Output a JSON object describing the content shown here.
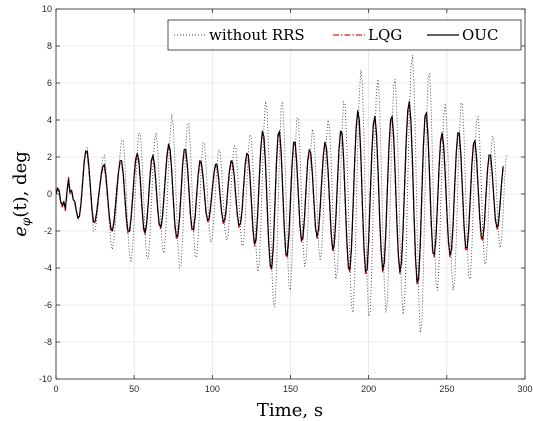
{
  "chart_data": {
    "type": "line",
    "xlabel": "Time, s",
    "ylabel": "e_φ(t), deg",
    "ylabel_parts": {
      "var": "e",
      "sub": "φ",
      "rest": "(t), deg"
    },
    "xlim": [
      0,
      300
    ],
    "ylim": [
      -10,
      10
    ],
    "x_ticks": [
      "0",
      "50",
      "100",
      "150",
      "200",
      "250",
      "300"
    ],
    "y_ticks": [
      "-10",
      "-8",
      "-6",
      "-4",
      "-2",
      "0",
      "2",
      "4",
      "6",
      "8",
      "10"
    ],
    "grid": true,
    "legend_position": "top-right",
    "sample_step": 1,
    "series": [
      {
        "name": "without RRS",
        "color": "#404040",
        "style": "dotted",
        "x_start": 0,
        "values": [
          0.0,
          0.4,
          0.2,
          -0.5,
          -0.6,
          -0.4,
          -0.8,
          0.1,
          0.6,
          0.0,
          0.2,
          -0.3,
          -0.5,
          -1.0,
          -1.4,
          -1.3,
          -0.6,
          0.6,
          1.8,
          2.4,
          2.5,
          1.7,
          0.4,
          -1.0,
          -2.0,
          -2.0,
          -1.4,
          -0.6,
          0.4,
          1.3,
          2.0,
          2.1,
          1.3,
          0.0,
          -1.4,
          -2.6,
          -3.0,
          -2.5,
          -1.5,
          -0.2,
          1.0,
          2.2,
          2.9,
          2.9,
          1.8,
          0.0,
          -2.0,
          -3.3,
          -3.7,
          -2.9,
          -1.4,
          0.6,
          2.4,
          3.3,
          3.2,
          2.0,
          0.0,
          -2.1,
          -3.4,
          -3.5,
          -2.4,
          -0.6,
          1.4,
          2.9,
          3.3,
          2.5,
          0.8,
          -1.3,
          -2.9,
          -3.2,
          -2.3,
          -0.6,
          1.5,
          3.3,
          4.3,
          3.7,
          1.9,
          -0.5,
          -2.8,
          -4.0,
          -3.9,
          -2.4,
          0.0,
          2.4,
          3.8,
          3.8,
          2.5,
          0.3,
          -2.0,
          -3.4,
          -3.4,
          -2.2,
          -0.3,
          1.6,
          2.8,
          2.7,
          1.5,
          -0.2,
          -1.8,
          -2.6,
          -2.4,
          -1.3,
          0.2,
          1.6,
          2.4,
          2.3,
          1.2,
          -0.4,
          -1.8,
          -2.5,
          -2.3,
          -1.2,
          0.4,
          1.8,
          2.6,
          2.5,
          1.4,
          -0.3,
          -1.9,
          -2.8,
          -2.7,
          -1.5,
          0.4,
          2.2,
          3.2,
          3.0,
          1.5,
          -0.8,
          -3.0,
          -4.2,
          -3.8,
          -1.8,
          1.0,
          3.6,
          5.0,
          4.6,
          2.4,
          -0.8,
          -3.9,
          -5.9,
          -6.1,
          -4.3,
          -1.0,
          2.4,
          4.7,
          5.0,
          3.3,
          0.3,
          -2.9,
          -5.0,
          -5.2,
          -3.5,
          -0.6,
          2.3,
          4.1,
          4.1,
          2.4,
          -0.2,
          -2.6,
          -3.9,
          -3.6,
          -1.9,
          0.5,
          2.5,
          3.5,
          3.1,
          1.5,
          -0.8,
          -2.8,
          -3.6,
          -3.0,
          -1.2,
          1.0,
          3.0,
          4.0,
          3.6,
          1.8,
          -0.8,
          -3.3,
          -4.6,
          -4.2,
          -2.1,
          0.8,
          3.5,
          5.0,
          4.8,
          2.7,
          -0.6,
          -3.9,
          -6.1,
          -6.4,
          -4.6,
          -1.2,
          2.5,
          5.4,
          6.7,
          5.9,
          3.0,
          -1.0,
          -4.6,
          -6.6,
          -6.4,
          -4.0,
          -0.3,
          3.2,
          5.6,
          6.2,
          4.8,
          1.8,
          -1.9,
          -4.9,
          -6.4,
          -5.8,
          -3.2,
          0.4,
          3.8,
          5.9,
          6.2,
          4.5,
          1.3,
          -2.3,
          -5.2,
          -6.5,
          -5.8,
          -3.1,
          0.6,
          4.2,
          6.7,
          7.5,
          6.0,
          2.6,
          -1.8,
          -5.5,
          -7.5,
          -7.0,
          -4.2,
          -0.1,
          3.8,
          6.3,
          6.5,
          4.6,
          1.2,
          -2.4,
          -4.8,
          -5.2,
          -3.8,
          -1.0,
          2.0,
          4.2,
          4.9,
          3.8,
          1.4,
          -1.5,
          -4.0,
          -5.2,
          -4.7,
          -2.6,
          0.4,
          3.2,
          4.9,
          4.9,
          3.1,
          0.2,
          -2.7,
          -4.5,
          -4.6,
          -3.0,
          -0.4,
          2.2,
          4.0,
          4.2,
          2.9,
          0.5,
          -2.0,
          -3.7,
          -3.8,
          -2.5,
          -0.3,
          1.8,
          3.1,
          3.0,
          1.7,
          -0.3,
          -2.1,
          -2.9,
          -2.5,
          -1.0,
          0.8,
          2.1
        ]
      },
      {
        "name": "LQG",
        "color": "#e8141e",
        "style": "dashdot",
        "x_start": 0,
        "values": [
          0.0,
          0.3,
          0.1,
          -0.4,
          -0.7,
          -0.5,
          -0.9,
          0.1,
          0.9,
          0.0,
          0.2,
          -0.3,
          -0.4,
          -0.9,
          -1.3,
          -1.2,
          -0.5,
          0.6,
          1.7,
          2.3,
          2.2,
          1.4,
          0.3,
          -0.9,
          -1.6,
          -1.5,
          -1.0,
          -0.3,
          0.4,
          1.0,
          1.5,
          1.5,
          0.8,
          -0.2,
          -1.2,
          -1.9,
          -2.0,
          -1.5,
          -0.6,
          0.4,
          1.2,
          1.7,
          1.7,
          1.0,
          -0.2,
          -1.4,
          -2.1,
          -2.1,
          -1.4,
          -0.3,
          0.9,
          1.8,
          2.1,
          1.7,
          0.6,
          -0.8,
          -1.9,
          -2.2,
          -1.6,
          -0.5,
          0.8,
          1.8,
          2.0,
          1.5,
          0.4,
          -0.8,
          -1.7,
          -1.9,
          -1.4,
          -0.3,
          0.9,
          2.0,
          2.6,
          2.3,
          1.2,
          -0.3,
          -1.7,
          -2.4,
          -2.3,
          -1.4,
          0.0,
          1.5,
          2.3,
          2.3,
          1.5,
          0.2,
          -1.2,
          -2.0,
          -2.0,
          -1.3,
          -0.1,
          1.0,
          1.7,
          1.6,
          0.9,
          -0.1,
          -1.1,
          -1.5,
          -1.4,
          -0.7,
          0.2,
          1.0,
          1.5,
          1.5,
          0.8,
          -0.2,
          -1.1,
          -1.6,
          -1.5,
          -0.8,
          0.3,
          1.2,
          1.7,
          1.6,
          0.9,
          -0.2,
          -1.2,
          -1.8,
          -1.7,
          -1.0,
          0.3,
          1.5,
          2.1,
          2.0,
          1.0,
          -0.5,
          -2.0,
          -2.8,
          -2.5,
          -1.2,
          0.7,
          2.4,
          3.3,
          3.0,
          1.6,
          -0.5,
          -2.6,
          -3.9,
          -4.1,
          -2.9,
          -0.7,
          1.6,
          3.1,
          3.3,
          2.2,
          0.2,
          -1.9,
          -3.3,
          -3.4,
          -2.3,
          -0.4,
          1.5,
          2.7,
          2.7,
          1.6,
          -0.1,
          -1.7,
          -2.6,
          -2.4,
          -1.3,
          0.3,
          1.7,
          2.3,
          2.1,
          1.0,
          -0.5,
          -1.9,
          -2.4,
          -2.0,
          -0.8,
          0.7,
          2.0,
          2.7,
          2.4,
          1.2,
          -0.5,
          -2.2,
          -3.1,
          -2.8,
          -1.4,
          0.5,
          2.3,
          3.3,
          3.2,
          1.8,
          -0.4,
          -2.6,
          -4.0,
          -4.2,
          -3.0,
          -0.8,
          1.6,
          3.5,
          4.4,
          3.9,
          2.0,
          -0.7,
          -3.0,
          -4.3,
          -4.2,
          -2.6,
          -0.2,
          2.1,
          3.7,
          4.1,
          3.2,
          1.2,
          -1.3,
          -3.2,
          -4.2,
          -3.8,
          -2.1,
          0.3,
          2.5,
          3.9,
          4.1,
          3.0,
          0.9,
          -1.5,
          -3.4,
          -4.3,
          -3.8,
          -2.0,
          0.4,
          2.8,
          4.4,
          4.9,
          3.9,
          1.7,
          -1.2,
          -3.6,
          -4.9,
          -4.6,
          -2.8,
          -0.1,
          2.5,
          4.1,
          4.3,
          3.0,
          0.8,
          -1.6,
          -3.2,
          -3.4,
          -2.5,
          -0.7,
          1.3,
          2.8,
          3.2,
          2.5,
          0.9,
          -1.0,
          -2.6,
          -3.4,
          -3.1,
          -1.7,
          0.3,
          2.1,
          3.2,
          3.2,
          2.0,
          0.1,
          -1.8,
          -3.0,
          -3.0,
          -2.0,
          -0.3,
          1.5,
          2.6,
          2.8,
          1.9,
          0.3,
          -1.3,
          -2.4,
          -2.5,
          -1.7,
          -0.2,
          1.2,
          2.0,
          2.0,
          1.1,
          -0.2,
          -1.4,
          -1.9,
          -1.7,
          -0.7,
          0.5,
          1.4
        ]
      },
      {
        "name": "OUC",
        "color": "#000000",
        "style": "solid",
        "x_start": 0,
        "values": [
          0.0,
          0.3,
          0.2,
          -0.4,
          -0.6,
          -0.4,
          -0.8,
          0.1,
          0.8,
          0.1,
          0.2,
          -0.3,
          -0.4,
          -0.9,
          -1.3,
          -1.2,
          -0.5,
          0.6,
          1.7,
          2.3,
          2.3,
          1.5,
          0.4,
          -0.8,
          -1.5,
          -1.5,
          -1.0,
          -0.3,
          0.4,
          1.1,
          1.5,
          1.6,
          0.9,
          -0.1,
          -1.1,
          -1.8,
          -2.0,
          -1.6,
          -0.7,
          0.3,
          1.2,
          1.8,
          1.8,
          1.1,
          -0.1,
          -1.3,
          -2.0,
          -2.0,
          -1.3,
          -0.2,
          1.0,
          1.9,
          2.2,
          1.8,
          0.7,
          -0.7,
          -1.8,
          -2.1,
          -1.6,
          -0.5,
          0.8,
          1.8,
          2.1,
          1.6,
          0.5,
          -0.7,
          -1.6,
          -1.8,
          -1.3,
          -0.2,
          1.0,
          2.1,
          2.7,
          2.4,
          1.3,
          -0.2,
          -1.6,
          -2.3,
          -2.2,
          -1.3,
          0.1,
          1.6,
          2.4,
          2.4,
          1.6,
          0.3,
          -1.1,
          -1.9,
          -1.9,
          -1.2,
          0.0,
          1.1,
          1.8,
          1.7,
          1.0,
          0.0,
          -1.0,
          -1.4,
          -1.3,
          -0.6,
          0.3,
          1.1,
          1.6,
          1.6,
          0.9,
          -0.1,
          -1.0,
          -1.5,
          -1.4,
          -0.7,
          0.4,
          1.3,
          1.8,
          1.7,
          1.0,
          -0.1,
          -1.1,
          -1.7,
          -1.6,
          -0.9,
          0.4,
          1.6,
          2.2,
          2.1,
          1.1,
          -0.4,
          -1.9,
          -2.7,
          -2.4,
          -1.1,
          0.8,
          2.5,
          3.4,
          3.1,
          1.7,
          -0.4,
          -2.5,
          -3.8,
          -4.0,
          -2.8,
          -0.6,
          1.7,
          3.2,
          3.4,
          2.3,
          0.3,
          -1.8,
          -3.2,
          -3.3,
          -2.2,
          -0.3,
          1.6,
          2.8,
          2.8,
          1.7,
          0.0,
          -1.6,
          -2.5,
          -2.3,
          -1.2,
          0.4,
          1.8,
          2.4,
          2.2,
          1.1,
          -0.4,
          -1.8,
          -2.3,
          -1.9,
          -0.7,
          0.8,
          2.1,
          2.8,
          2.5,
          1.3,
          -0.4,
          -2.1,
          -3.0,
          -2.7,
          -1.3,
          0.6,
          2.4,
          3.4,
          3.3,
          1.9,
          -0.3,
          -2.5,
          -3.9,
          -4.1,
          -2.9,
          -0.7,
          1.7,
          3.6,
          4.5,
          4.0,
          2.1,
          -0.6,
          -2.9,
          -4.2,
          -4.1,
          -2.5,
          -0.1,
          2.2,
          3.8,
          4.2,
          3.3,
          1.3,
          -1.2,
          -3.1,
          -4.1,
          -3.7,
          -2.0,
          0.4,
          2.6,
          4.0,
          4.2,
          3.1,
          1.0,
          -1.4,
          -3.3,
          -4.2,
          -3.7,
          -1.9,
          0.5,
          2.9,
          4.5,
          5.0,
          4.0,
          1.8,
          -1.1,
          -3.5,
          -4.8,
          -4.5,
          -2.7,
          0.0,
          2.6,
          4.2,
          4.4,
          3.1,
          0.9,
          -1.5,
          -3.1,
          -3.3,
          -2.4,
          -0.6,
          1.4,
          2.9,
          3.3,
          2.6,
          1.0,
          -0.9,
          -2.5,
          -3.3,
          -3.0,
          -1.6,
          0.4,
          2.2,
          3.3,
          3.3,
          2.1,
          0.2,
          -1.7,
          -2.9,
          -2.9,
          -1.9,
          -0.2,
          1.6,
          2.7,
          2.9,
          2.0,
          0.4,
          -1.2,
          -2.3,
          -2.4,
          -1.6,
          -0.1,
          1.3,
          2.1,
          2.1,
          1.2,
          -0.1,
          -1.3,
          -1.8,
          -1.6,
          -0.6,
          0.6,
          1.5
        ]
      }
    ]
  }
}
